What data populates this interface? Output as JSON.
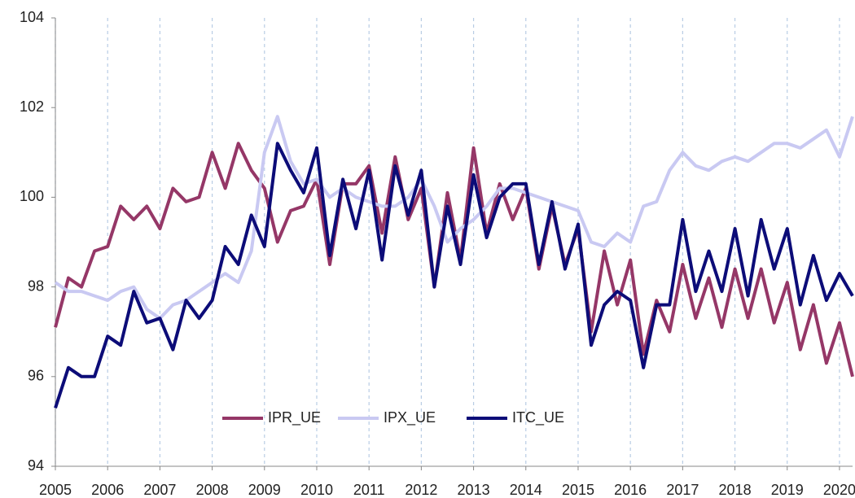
{
  "chart_data": {
    "type": "line",
    "x": [
      2005,
      2005.25,
      2005.5,
      2005.75,
      2006,
      2006.25,
      2006.5,
      2006.75,
      2007,
      2007.25,
      2007.5,
      2007.75,
      2008,
      2008.25,
      2008.5,
      2008.75,
      2009,
      2009.25,
      2009.5,
      2009.75,
      2010,
      2010.25,
      2010.5,
      2010.75,
      2011,
      2011.25,
      2011.5,
      2011.75,
      2012,
      2012.25,
      2012.5,
      2012.75,
      2013,
      2013.25,
      2013.5,
      2013.75,
      2014,
      2014.25,
      2014.5,
      2014.75,
      2015,
      2015.25,
      2015.5,
      2015.75,
      2016,
      2016.25,
      2016.5,
      2016.75,
      2017,
      2017.25,
      2017.5,
      2017.75,
      2018,
      2018.25,
      2018.5,
      2018.75,
      2019,
      2019.25,
      2019.5,
      2019.75,
      2020,
      2020.25
    ],
    "series": [
      {
        "name": "IPR_UE",
        "color": "#953767",
        "values": [
          97.1,
          98.2,
          98.0,
          98.8,
          98.9,
          99.8,
          99.5,
          99.8,
          99.3,
          100.2,
          99.9,
          100.0,
          101.0,
          100.2,
          101.2,
          100.6,
          100.2,
          99.0,
          99.7,
          99.8,
          100.4,
          98.5,
          100.3,
          100.3,
          100.7,
          99.2,
          100.9,
          99.5,
          100.2,
          98.0,
          100.1,
          98.6,
          101.1,
          99.2,
          100.3,
          99.5,
          100.2,
          98.4,
          99.8,
          98.5,
          99.3,
          97.0,
          98.8,
          97.6,
          98.6,
          96.5,
          97.7,
          97.0,
          98.5,
          97.3,
          98.2,
          97.1,
          98.4,
          97.3,
          98.4,
          97.2,
          98.1,
          96.6,
          97.6,
          96.3,
          97.2,
          96.0
        ]
      },
      {
        "name": "IPX_UE",
        "color": "#c9c9f2",
        "values": [
          98.1,
          97.9,
          97.9,
          97.8,
          97.7,
          97.9,
          98.0,
          97.5,
          97.3,
          97.6,
          97.7,
          97.9,
          98.1,
          98.3,
          98.1,
          98.8,
          101.0,
          101.8,
          100.8,
          100.3,
          100.4,
          100.0,
          100.2,
          100.0,
          99.9,
          99.8,
          99.8,
          100.0,
          100.4,
          99.8,
          99.0,
          99.3,
          99.5,
          99.8,
          100.2,
          100.2,
          100.1,
          100.0,
          99.9,
          99.8,
          99.7,
          99.0,
          98.9,
          99.2,
          99.0,
          99.8,
          99.9,
          100.6,
          101.0,
          100.7,
          100.6,
          100.8,
          100.9,
          100.8,
          101.0,
          101.2,
          101.2,
          101.1,
          101.3,
          101.5,
          100.9,
          101.8
        ]
      },
      {
        "name": "ITC_UE",
        "color": "#0c0c78",
        "values": [
          95.3,
          96.2,
          96.0,
          96.0,
          96.9,
          96.7,
          97.9,
          97.2,
          97.3,
          96.6,
          97.7,
          97.3,
          97.7,
          98.9,
          98.5,
          99.6,
          98.9,
          101.2,
          100.6,
          100.1,
          101.1,
          98.7,
          100.4,
          99.3,
          100.6,
          98.6,
          100.7,
          99.6,
          100.6,
          98.0,
          99.8,
          98.5,
          100.5,
          99.1,
          100.0,
          100.3,
          100.3,
          98.5,
          99.9,
          98.4,
          99.4,
          96.7,
          97.6,
          97.9,
          97.7,
          96.2,
          97.6,
          97.6,
          99.5,
          97.9,
          98.8,
          97.9,
          99.3,
          97.8,
          99.5,
          98.4,
          99.3,
          97.6,
          98.7,
          97.7,
          98.3,
          97.8
        ]
      }
    ],
    "xlim": [
      2005,
      2020.25
    ],
    "xticks": [
      2005,
      2006,
      2007,
      2008,
      2009,
      2010,
      2011,
      2012,
      2013,
      2014,
      2015,
      2016,
      2017,
      2018,
      2019,
      2020
    ],
    "ylim": [
      94,
      104
    ],
    "yticks": [
      94,
      96,
      98,
      100,
      102,
      104
    ],
    "grid": true,
    "legend": "bottom"
  }
}
